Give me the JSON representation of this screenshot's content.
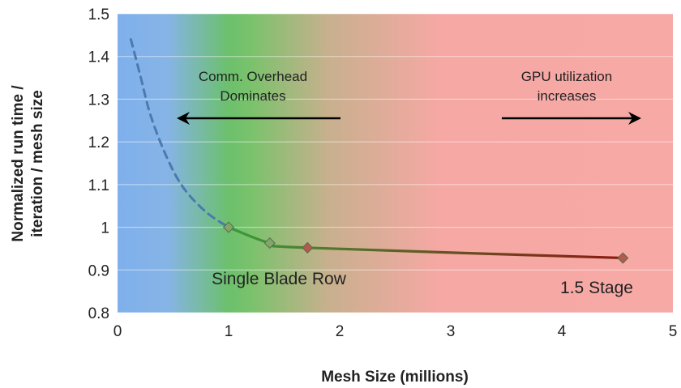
{
  "chart_data": {
    "type": "line",
    "xlabel": "Mesh Size (millions)",
    "ylabel_lines": [
      "Normalized run time /",
      "iteration / mesh size"
    ],
    "xlim": [
      0,
      5
    ],
    "ylim": [
      0.8,
      1.5
    ],
    "x_ticks": [
      "0",
      "1",
      "2",
      "3",
      "4",
      "5"
    ],
    "y_ticks": [
      "0.8",
      "0.9",
      "1",
      "1.1",
      "1.2",
      "1.3",
      "1.4",
      "1.5"
    ],
    "grid": true,
    "series": [
      {
        "style": "dashed",
        "color": "#4a7ab0",
        "x": [
          0.12,
          0.2,
          0.3,
          0.45,
          0.6,
          0.8,
          1.0
        ],
        "y": [
          1.44,
          1.36,
          1.26,
          1.16,
          1.09,
          1.035,
          1.0
        ]
      },
      {
        "style": "solid",
        "markers": true,
        "color_start": "#3a9a3a",
        "color_end": "#8a1a10",
        "x": [
          1.0,
          1.37,
          1.71,
          4.55
        ],
        "y": [
          1.0,
          0.963,
          0.952,
          0.928
        ]
      }
    ],
    "background_gradient": [
      {
        "x": 0.0,
        "color": "#7fb0ec"
      },
      {
        "x": 0.45,
        "color": "#86b4e6"
      },
      {
        "x": 1.0,
        "color": "#6cc06c"
      },
      {
        "x": 1.2,
        "color": "#7ac26c"
      },
      {
        "x": 1.9,
        "color": "#c8b08e"
      },
      {
        "x": 2.9,
        "color": "#f6a8a4"
      },
      {
        "x": 5.0,
        "color": "#f7a9a6"
      }
    ],
    "annotations": [
      {
        "id": "comm",
        "lines": [
          "Comm. Overhead",
          "Dominates"
        ],
        "arrow": "left"
      },
      {
        "id": "gpu",
        "lines": [
          "GPU utilization",
          "increases"
        ],
        "arrow": "right"
      },
      {
        "id": "blade",
        "lines": [
          "Single Blade Row"
        ]
      },
      {
        "id": "stage",
        "lines": [
          "1.5 Stage"
        ]
      }
    ]
  }
}
